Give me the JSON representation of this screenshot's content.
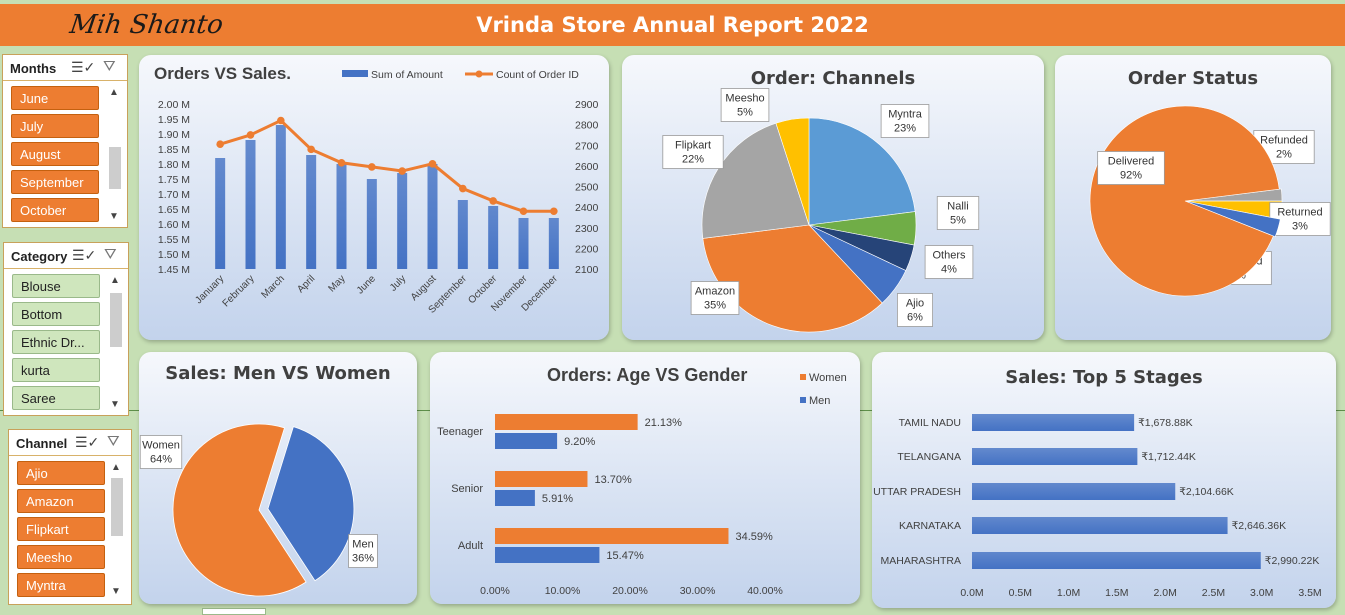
{
  "header": {
    "logo_text": "Mih Shanto",
    "title": "Vrinda Store Annual Report 2022",
    "accent": "#ed7d31"
  },
  "slicers": {
    "months": {
      "title": "Months",
      "items": [
        "June",
        "July",
        "August",
        "September",
        "October"
      ]
    },
    "category": {
      "title": "Category",
      "items": [
        "Blouse",
        "Bottom",
        "Ethnic Dr...",
        "kurta",
        "Saree"
      ]
    },
    "channel": {
      "title": "Channel",
      "items": [
        "Ajio",
        "Amazon",
        "Flipkart",
        "Meesho",
        "Myntra"
      ]
    }
  },
  "icons": {
    "multiselect": "multi-select-icon",
    "clear_filter": "clear-filter-icon",
    "scroll_up": "scroll-up-icon",
    "scroll_down": "scroll-down-icon"
  },
  "chart_data": [
    {
      "id": "orders_vs_sales",
      "type": "bar",
      "title": "Orders VS Sales.",
      "categories": [
        "January",
        "February",
        "March",
        "April",
        "May",
        "June",
        "July",
        "August",
        "September",
        "October",
        "November",
        "December"
      ],
      "series": [
        {
          "name": "Sum of Amount",
          "type": "bar",
          "axis": "left",
          "color": "#4472c4",
          "values": [
            1.82,
            1.88,
            1.93,
            1.83,
            1.8,
            1.75,
            1.77,
            1.8,
            1.68,
            1.66,
            1.62,
            1.62
          ]
        },
        {
          "name": "Count of Order ID",
          "type": "line",
          "axis": "right",
          "color": "#ed7d31",
          "values": [
            2705,
            2750,
            2820,
            2680,
            2615,
            2595,
            2575,
            2610,
            2490,
            2430,
            2380,
            2380
          ]
        }
      ],
      "ylim_left": [
        1.45,
        2.0
      ],
      "yticks_left": [
        "1.45 M",
        "1.50 M",
        "1.55 M",
        "1.60 M",
        "1.65 M",
        "1.70 M",
        "1.75 M",
        "1.80 M",
        "1.85 M",
        "1.90 M",
        "1.95 M",
        "2.00 M"
      ],
      "ylim_right": [
        2100,
        2900
      ],
      "yticks_right": [
        "2100",
        "2200",
        "2300",
        "2400",
        "2500",
        "2600",
        "2700",
        "2800",
        "2900"
      ],
      "legend_position": "top-right"
    },
    {
      "id": "order_channels",
      "type": "pie",
      "title": "Order: Channels",
      "slices": [
        {
          "label": "Myntra",
          "value": 23,
          "display": "23%",
          "color": "#5b9bd5"
        },
        {
          "label": "Nalli",
          "value": 5,
          "display": "5%",
          "color": "#70ad47"
        },
        {
          "label": "Others",
          "value": 4,
          "display": "4%",
          "color": "#264478"
        },
        {
          "label": "Ajio",
          "value": 6,
          "display": "6%",
          "color": "#4472c4"
        },
        {
          "label": "Amazon",
          "value": 35,
          "display": "35%",
          "color": "#ed7d31"
        },
        {
          "label": "Flipkart",
          "value": 22,
          "display": "22%",
          "color": "#a5a5a5"
        },
        {
          "label": "Meesho",
          "value": 5,
          "display": "5%",
          "color": "#ffc000"
        }
      ]
    },
    {
      "id": "order_status",
      "type": "pie",
      "title": "Order Status",
      "slices": [
        {
          "label": "Refunded",
          "value": 2,
          "display": "2%",
          "color": "#a5a5a5"
        },
        {
          "label": "Returned",
          "value": 3,
          "display": "3%",
          "color": "#ffc000"
        },
        {
          "label": "Cancelled",
          "value": 3,
          "display": "3%",
          "color": "#4472c4"
        },
        {
          "label": "Delivered",
          "value": 92,
          "display": "92%",
          "color": "#ed7d31"
        }
      ]
    },
    {
      "id": "sales_men_women",
      "type": "pie",
      "title": "Sales: Men VS Women",
      "slices": [
        {
          "label": "Men",
          "value": 36,
          "display": "36%",
          "color": "#4472c4"
        },
        {
          "label": "Women",
          "value": 64,
          "display": "64%",
          "color": "#ed7d31"
        }
      ]
    },
    {
      "id": "orders_age_gender",
      "type": "bar",
      "orientation": "horizontal",
      "title": "Orders: Age VS Gender",
      "categories": [
        "Teenager",
        "Senior",
        "Adult"
      ],
      "series": [
        {
          "name": "Women",
          "color": "#ed7d31",
          "values": [
            21.13,
            13.7,
            34.59
          ],
          "labels": [
            "21.13%",
            "13.70%",
            "34.59%"
          ]
        },
        {
          "name": "Men",
          "color": "#4472c4",
          "values": [
            9.2,
            5.91,
            15.47
          ],
          "labels": [
            "9.20%",
            "5.91%",
            "15.47%"
          ]
        }
      ],
      "xlim": [
        0,
        40
      ],
      "xticks": [
        "0.00%",
        "10.00%",
        "20.00%",
        "30.00%",
        "40.00%"
      ],
      "legend_position": "top-right"
    },
    {
      "id": "sales_top5_states",
      "type": "bar",
      "orientation": "horizontal",
      "title": "Sales: Top 5 Stages",
      "categories": [
        "TAMIL NADU",
        "TELANGANA",
        "UTTAR PRADESH",
        "KARNATAKA",
        "MAHARASHTRA"
      ],
      "values": [
        1.67888,
        1.71244,
        2.10466,
        2.64636,
        2.99022
      ],
      "labels": [
        "₹1,678.88K",
        "₹1,712.44K",
        "₹2,104.66K",
        "₹2,646.36K",
        "₹2,990.22K"
      ],
      "color": "#4472c4",
      "xlim": [
        0,
        3.5
      ],
      "xticks": [
        "0.0M",
        "0.5M",
        "1.0M",
        "1.5M",
        "2.0M",
        "2.5M",
        "3.0M",
        "3.5M"
      ]
    }
  ]
}
